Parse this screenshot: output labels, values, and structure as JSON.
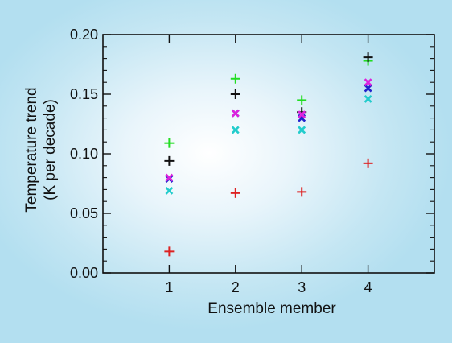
{
  "chart_data": {
    "type": "scatter",
    "title": "",
    "xlabel": "Ensemble member",
    "ylabel": "Temperature trend",
    "ylabel_units": "(K per decade)",
    "xlim": [
      0,
      5
    ],
    "ylim": [
      0.0,
      0.2
    ],
    "x_ticks": [
      "1",
      "2",
      "3",
      "4"
    ],
    "y_ticks": [
      "0.00",
      "0.05",
      "0.10",
      "0.15",
      "0.20"
    ],
    "grid": false,
    "legend": "none",
    "series": [
      {
        "color": "#22dd22",
        "marker": "plus",
        "x": [
          1,
          2,
          3,
          4
        ],
        "y": [
          0.109,
          0.163,
          0.145,
          0.178
        ]
      },
      {
        "color": "#111111",
        "marker": "plus",
        "x": [
          1,
          2,
          3,
          4
        ],
        "y": [
          0.094,
          0.15,
          0.135,
          0.181
        ]
      },
      {
        "color": "#dd2222",
        "marker": "plus",
        "x": [
          1,
          2,
          3,
          4
        ],
        "y": [
          0.018,
          0.067,
          0.068,
          0.092
        ]
      },
      {
        "color": "#2222cc",
        "marker": "x",
        "x": [
          1,
          2,
          3,
          4
        ],
        "y": [
          0.079,
          0.134,
          0.13,
          0.155
        ]
      },
      {
        "color": "#dd22dd",
        "marker": "x",
        "x": [
          1,
          2,
          3,
          4
        ],
        "y": [
          0.08,
          0.134,
          0.133,
          0.16
        ]
      },
      {
        "color": "#22cccc",
        "marker": "x",
        "x": [
          1,
          2,
          3,
          4
        ],
        "y": [
          0.069,
          0.12,
          0.12,
          0.146
        ]
      }
    ]
  }
}
